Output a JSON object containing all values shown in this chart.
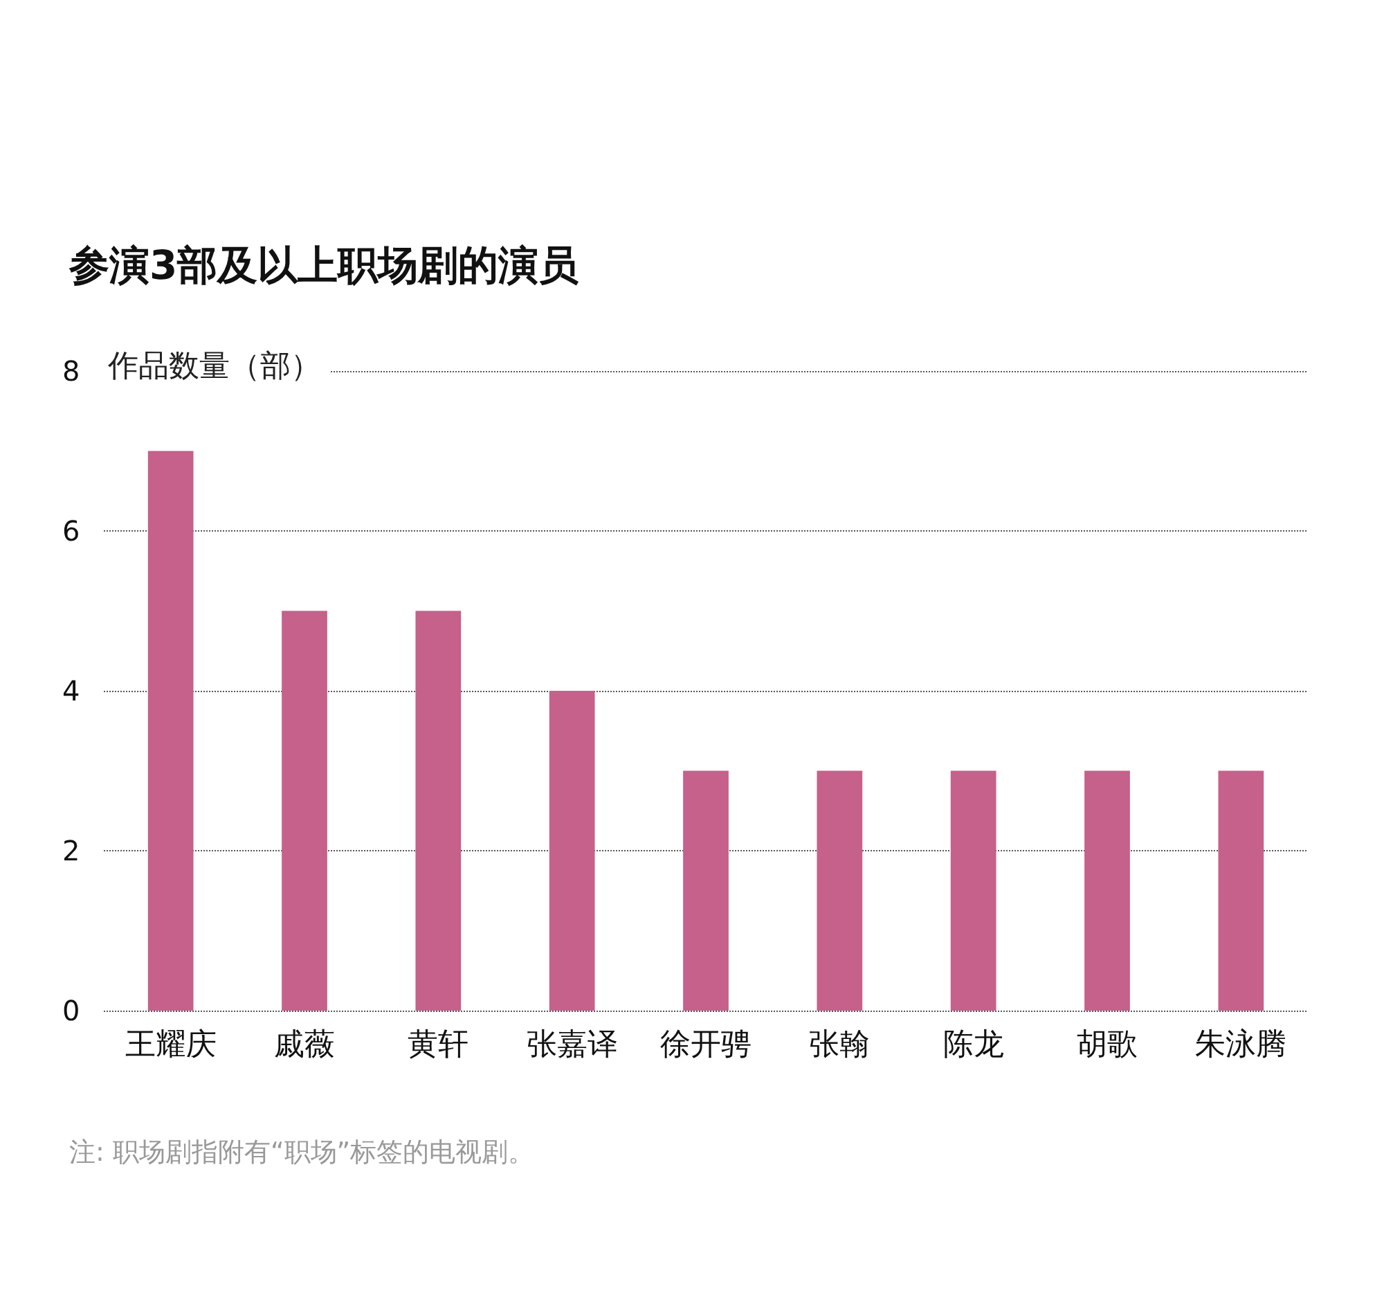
{
  "chart_data": {
    "type": "bar",
    "title": "参演3部及以上职场剧的演员",
    "ylabel": "作品数量（部）",
    "categories": [
      "王耀庆",
      "戚薇",
      "黄轩",
      "张嘉译",
      "徐开骋",
      "张翰",
      "陈龙",
      "胡歌",
      "朱泳腾"
    ],
    "values": [
      7,
      5,
      5,
      4,
      3,
      3,
      3,
      3,
      3
    ],
    "color": "#c5618a",
    "ylim": [
      0,
      8
    ],
    "yticks": [
      0,
      2,
      4,
      6,
      8
    ],
    "grid": "y",
    "annotations": [
      "注: 职场剧指附有“职场”标签的电视剧。"
    ]
  }
}
